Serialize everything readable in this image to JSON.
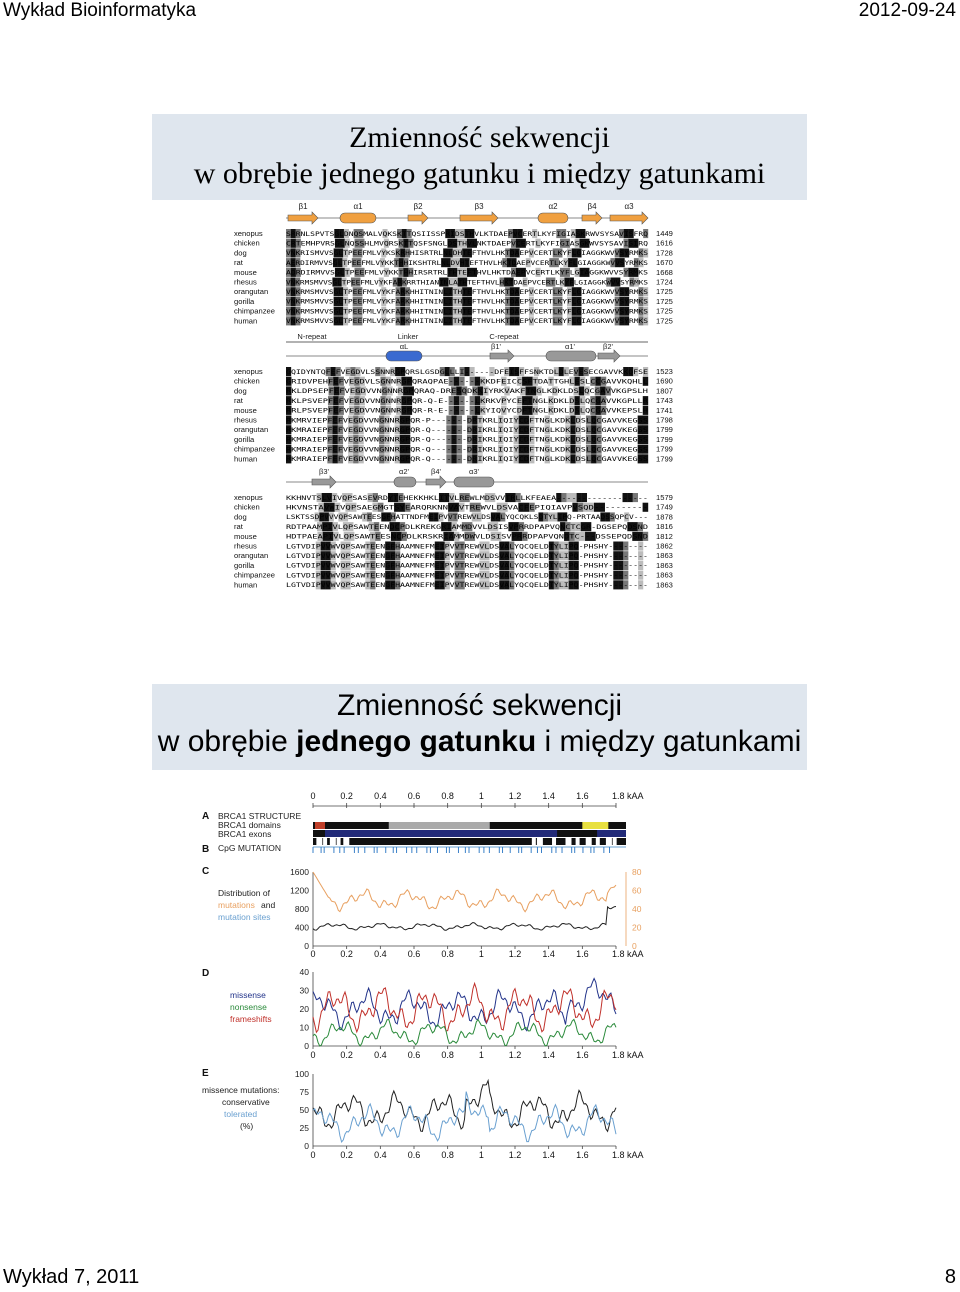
{
  "header": {
    "left": "Wykład Bioinformatyka",
    "right": "2012-09-24"
  },
  "footer": {
    "left": "Wykład 7, 2011",
    "right": "8"
  },
  "slide1": {
    "title_line1": "Zmienność sekwencji",
    "title_line2": "w obrębie jednego gatunku i między gatunkami",
    "species": [
      "xenopus",
      "chicken",
      "dog",
      "rat",
      "mouse",
      "rhesus",
      "orangutan",
      "gorilla",
      "chimpanzee",
      "human"
    ],
    "block1": {
      "elements": [
        "β1",
        "α1",
        "β2",
        "β3",
        "α2",
        "β4",
        "α3"
      ],
      "rows": [
        "SRRNLSPVTSGLDNQSMALVQKSKTTQSIISSPRIDSTHVLKTDAEPVCERTLKYFIGIASKRWVSYSAVISFRQ",
        "CRTEMHPVRSGLNQSSHLMVQRSKTTQSFSNGLDSTHVLNKTDAEPVCERTLKYFIGIASGKWVSYSAVISIRQ",
        "VNKRISMVVSGLTPEEFMLVYKSKRHHISRTRLNLDHTEFTHVLHKTDAEPVCERTLKYFLGIAGGKWVVSYRMKS",
        "AERDIRMVVSGLTPEEFMLVYKKTHHIKSHTRLNLDVHTEFTHVLHKTDAEPVCERTLKYFLGIAGGKWVVSYRMKS",
        "ADRDIRMVVSGLTPEEFMLVYKKTHHIRSRTRLTHTEFTHVLHKTDAEPVCERTLKYFLGIAGGKWVVSYRMKS",
        "VNKRMSMVVSGLTPEEFMLVYKFARKRRTHIANINLATHTEFTHVLHKTDAEPVCERTLKYFLGIAGGKWVVSYRMKS",
        "VNKRMSMVVSGLTPEEFMLVYKFARKHHITNINLITHTEFTHVLHKTDAEPVCERTLKYFLGIAGGKWVVSYRMKS",
        "VNKRMSMVVSGLTPEEFMLVYKFARKHHITNINLITHTEFTHVLHKTDAEPVCERTLKYFLGIAGGKWVVSYRMKS",
        "VNKRMSMVVSGLTPEEFMLVYKFARKHHITNINLITHTEFTHVLHKTDAEPVCERTLKYFLGIAGGKWVVSYRMKS",
        "VNKRMSMVVSGLTPEEFMLVYKFARKHHITNINLITHTEFTHVLHKTDAEPVCERTLKYFLGIAGGKWVVSYRMKS"
      ],
      "numbers": [
        "1449",
        "1616",
        "1728",
        "1670",
        "1668",
        "1724",
        "1725",
        "1725",
        "1725",
        "1725"
      ]
    },
    "block2": {
      "labels": [
        "N-repeat",
        "Linker",
        "C-repeat"
      ],
      "elements": [
        "αL",
        "β1'",
        "α1'",
        "β2'"
      ],
      "rows": [
        "GQIDYNTQFEFVEGDVLSSNNRGPQRSLGSDGLLLI------DFEISFFSNKTDLDLEVESECGAVVKKQFSE",
        "GRIDVPEHFEFVEGDVLSGNNRGPQRAQPAE------KKDFEICCSFTDATTGHLESLCCGAVVKQHLL",
        "RKLDPSEPFEFVEGDVVNGNNRGPQRAQ-DRESQDKKIYRKVAKFTNGLKDKLDSLQCGAVVKGPSLH",
        "RKLPSVEPFEFVEGDVVNGNNRGPQR-Q-E------LKRKVPYCEFTNGLKDKLDSLQCGAVVKGPLLR",
        "RRLPSVEPFEFVEGDVVNGNNRGPQR-R-E------LKYIQVYCDFTNGLKDKLDSLQCGAVVKEPSLH",
        "RKMRVIEPFEFVEGDVVNGNNRGPQR-P-------DRTKRLIQIYCDFTNGLKDKLDSLQCGAVVKEGSS",
        "RKMRAIEPFEFVEGDVVNGNNRGPQR-Q-------DRIKRLIQIYCDFTNGLKDKLDSLQCGAVVKEGSS",
        "RKMRAIEPFEFVEGDVVNGNNRGPQR-Q-------DRIKRLIQIYCDFTNGLKDKLDSLQCGAVVKEGSS",
        "RKMRAIEPFEFVEGDVVNGNNRGPQR-Q-------DRIKRLIQIYCDFTNGLKDKLDSLQCGAVVKEGSS",
        "RKMRAIEPFEFVEGDVVNGNNRGPQR-Q-------DRIKRLIQIYCDFTNGLKDKLDSLQCGAVVKEGSS"
      ],
      "numbers": [
        "1523",
        "1690",
        "1807",
        "1743",
        "1741",
        "1798",
        "1799",
        "1799",
        "1799",
        "1799"
      ]
    },
    "block3": {
      "elements": [
        "β3'",
        "α2'",
        "β4'",
        "α3'"
      ],
      "rows": [
        "KKHNVTSLVIVQPSASEVRDYTEHEKKHKLITVLREWLMDSVVTRLLKFEAEA------------------",
        "HKVNSTAVWIVQPSAEGMGTSYEARQRKNNVAVTREWVLDSVACFEPIQIAVPVSQD----------",
        "LSKTSSDPVVVQPSAWTEESGFHATTNDFMEIPVVTREWVLDSVALYQCQKLSDTYLIPQ-PRTAADSSQPCV---",
        "RDTPAAMPIVLQPSAWTEENDCPDLKREKGRIAMMDVVLDSISVPRRDPAPVQNCTCGR-DGSEPQDSND",
        "HDTPAEAPIVLQPSAWTEESNCPDLKRSKRIAMMDWVLDSISVPRRDPAPVQNDTC---DSSEPQDSND",
        "LGTVDIPVVWVQPSAWTEENGFHAAMNEFMEIPVVTREWVLDSVALYQCQELDTYLIPQ-PHSHY--------",
        "LGTVDIPVVWVQPSAWTEENGFHAAMNEFMEIPVVTREWVLDSVALYQCQELDTYLIPQ-PHSHY--------",
        "LGTVDIPVVWVQPSAWTEENGFHAAMNEFMEIPVVTREWVLDSVALYQCQELDTYLIPQ-PHSHY--------",
        "LGTVDIPVVWVQPSAWTEENGFHAAMNEFMEIPVVTREWVLDSVALYQCQELDTYLIPQ-PHSHY--------",
        "LGTVDIPVVWVQPSAWTEENGFHAAMNEFMEIPVVTREWVLDSVALYQCQELDTYLIPQ-PHSHY--------"
      ],
      "numbers": [
        "1579",
        "1749",
        "1878",
        "1816",
        "1812",
        "1862",
        "1863",
        "1863",
        "1863",
        "1863"
      ]
    }
  },
  "slide2": {
    "title_prefix": "w obrębie ",
    "title_bold": "jednego gatunku",
    "title_suffix": " i między gatunkami",
    "title_line1": "Zmienność sekwencji",
    "x_ticks": [
      "0",
      "0.2",
      "0.4",
      "0.6",
      "0.8",
      "1",
      "1.2",
      "1.4",
      "1.6",
      "1.8 kAA"
    ],
    "panel_A": {
      "letter": "A",
      "labels": [
        "BRCA1 STRUCTURE",
        "BRCA1 domains",
        "BRCA1 exons"
      ]
    },
    "panel_B": {
      "letter": "B",
      "label": "CpG MUTATION"
    },
    "panel_C": {
      "letter": "C",
      "label_parts": [
        "Distribution of",
        "mutations",
        "and",
        "mutation sites"
      ],
      "y_left": [
        "1600",
        "1200",
        "800",
        "400",
        "0"
      ],
      "y_right": [
        "80",
        "60",
        "40",
        "20",
        "0"
      ]
    },
    "panel_D": {
      "letter": "D",
      "series_labels": [
        "missense",
        "nonsense",
        "frameshifts"
      ],
      "y_ticks": [
        "40",
        "30",
        "20",
        "10",
        "0"
      ]
    },
    "panel_E": {
      "letter": "E",
      "label_lines": [
        "missence mutations:",
        "conservative",
        "tolerated",
        "(%)"
      ],
      "y_ticks": [
        "100",
        "75",
        "50",
        "25",
        "0"
      ]
    },
    "colors": {
      "orange": "#e8a060",
      "blue": "#22338a",
      "red": "#c0302a",
      "green": "#2a8a3a",
      "lightblue": "#6aa0d0",
      "black": "#222222"
    }
  }
}
